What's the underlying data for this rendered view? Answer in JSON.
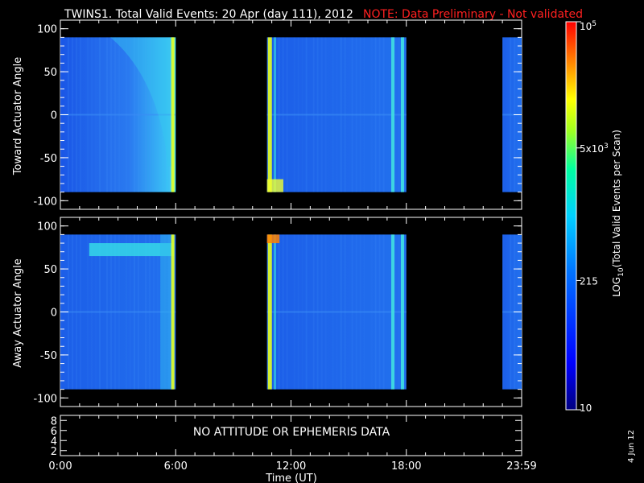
{
  "header": {
    "title": "TWINS1. Total Valid Events: 20 Apr (day 111), 2012",
    "note": "NOTE: Data Preliminary - Not validated"
  },
  "chart_data": [
    {
      "type": "heatmap",
      "panel": "toward",
      "ylabel": "Toward Actuator Angle",
      "ylim": [
        -110,
        110
      ],
      "yticks": [
        "100",
        "50",
        "0",
        "-50",
        "-100"
      ],
      "data_segments_hours": [
        [
          0.0,
          6.0
        ],
        [
          10.75,
          18.0
        ],
        [
          23.0,
          24.0
        ]
      ],
      "bright_bands_hours": [
        5.85,
        10.9,
        17.3,
        17.8
      ],
      "note": "coloured spectrogram of counts vs time and look angle"
    },
    {
      "type": "heatmap",
      "panel": "away",
      "ylabel": "Away Actuator Angle",
      "ylim": [
        -110,
        110
      ],
      "yticks": [
        "100",
        "50",
        "0",
        "-50",
        "-100"
      ],
      "data_segments_hours": [
        [
          0.0,
          6.0
        ],
        [
          10.75,
          18.0
        ],
        [
          23.0,
          24.0
        ]
      ],
      "bright_bands_hours": [
        5.85,
        10.9,
        17.3,
        17.8
      ],
      "note": "coloured spectrogram of counts vs time and look angle"
    }
  ],
  "ephemeris_panel": {
    "yticks": [
      "8",
      "6",
      "4",
      "2"
    ],
    "message": "NO ATTITUDE OR EPHEMERIS DATA"
  },
  "xaxis": {
    "ticks": [
      "0:00",
      "6:00",
      "12:00",
      "18:00",
      "23:59"
    ],
    "label": "Time (UT)",
    "range_hours": [
      0,
      24
    ]
  },
  "colorbar": {
    "label": "LOG10(Total Valid Events per Scan)",
    "label_main": "LOG",
    "label_sub": "10",
    "label_rest": "(Total Valid Events per Scan)",
    "ticks": [
      {
        "value": 10,
        "base": "10",
        "exp": ""
      },
      {
        "value": 215,
        "base": "215",
        "exp": ""
      },
      {
        "value": 5000,
        "base": "5x10",
        "exp": "3"
      },
      {
        "value": 100000,
        "base": "10",
        "exp": "5"
      }
    ],
    "scale": "log",
    "colors": [
      "#000090",
      "#0000ff",
      "#0060ff",
      "#00c0ff",
      "#00ffc0",
      "#80ff40",
      "#ffff00",
      "#ff8000",
      "#ff0000"
    ]
  },
  "footer": {
    "date": "4 Jun 12"
  }
}
